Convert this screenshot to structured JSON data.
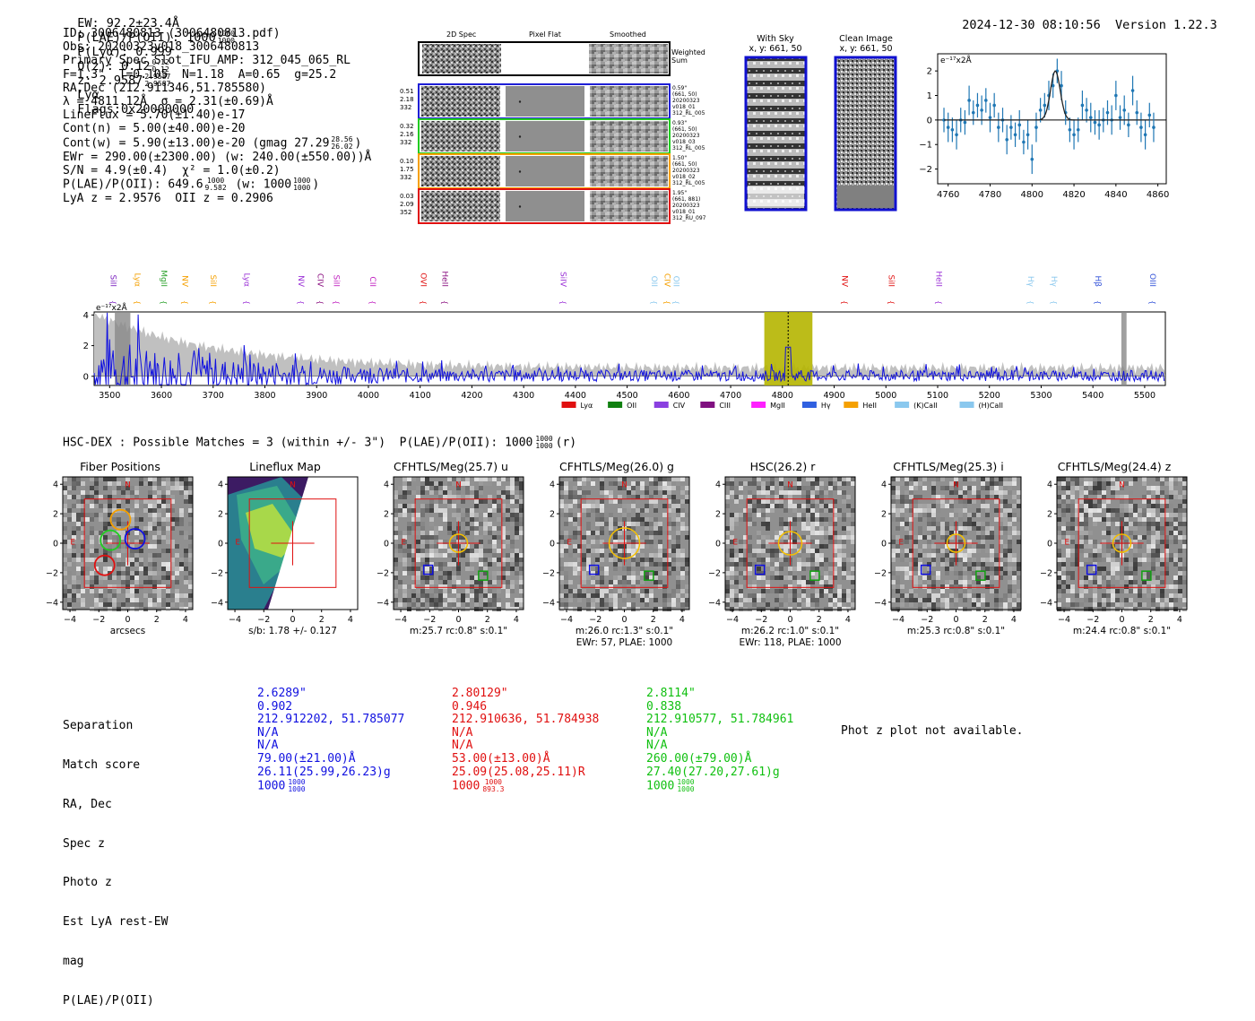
{
  "header": {
    "ew": "EW: 92.2±23.4Å",
    "plae_label": "P(LAE)/P(OII): 1000",
    "plae_hi": "1000",
    "plae_lo": "1000",
    "plya": "P(Lyα): 0.999",
    "qz_label": "Q(z): 0.12",
    "qz_hi": "0.12",
    "qz_lo": "0.12",
    "z_label": "z: 2.9587",
    "z_hi": "2.9587",
    "z_lo": "2.9587",
    "z_line": "Lyα",
    "flags": "Flags:0x20000000",
    "timestamp": "2024-12-30 08:10:56",
    "version": "Version 1.22.3"
  },
  "info": {
    "lines": [
      "ID: 3006480813 (3006480813.pdf)",
      "Obs: 20200323v018_3006480813",
      "Primary Spec_Slot_IFU_AMP: 312_045_065_RL",
      "F=1.3\"  T=0.105  N=1.18  A=0.65  g=25.2",
      "RA,Dec (212.911346,51.785580)",
      "λ = 4811.12Å  σ = 2.31(±0.69)Å",
      "LineFlux = 5.70(±1.40)e-17",
      "Cont(n) = 5.00(±40.00)e-20"
    ],
    "cont_w": "Cont(w) = 5.90(±13.00)e-20 (gmag 27.29",
    "cont_w_hi": "28.56",
    "cont_w_lo": "26.02",
    "cont_w_end": ")",
    "ewr": "EWr = 290.00(±2300.00) (w: 240.00(±550.00))Å",
    "sn": "S/N = 4.9(±0.4)  χ² = 1.0(±0.2)",
    "plae2": "P(LAE)/P(OII): 649.6",
    "plae2_hi": "1000",
    "plae2_lo": "9.582",
    "plae2_w": "(w: 1000",
    "plae2_w_hi": "1000",
    "plae2_w_lo": "1000",
    "plae2_end": ")",
    "zs": "LyA z = 2.9576  OII z = 0.2906"
  },
  "cutouts": {
    "col_headers": [
      "2D Spec",
      "Pixel Flat",
      "Smoothed"
    ],
    "weighted_sum": "Weighted Sum",
    "rows": [
      {
        "left": [
          "0.51",
          "2.18",
          "332"
        ],
        "right": [
          "0.59\"",
          "(661, 50)",
          "20200323",
          "v018_01",
          "312_RL_005"
        ],
        "color": "#1f1fd6"
      },
      {
        "left": [
          "0.32",
          "2.16",
          "332"
        ],
        "right": [
          "0.93\"",
          "(661, 50)",
          "20200323",
          "v018_03",
          "312_RL_005"
        ],
        "color": "#22cc22"
      },
      {
        "left": [
          "0.10",
          "1.75",
          "332"
        ],
        "right": [
          "1.50\"",
          "(661, 50)",
          "20200323",
          "v018_02",
          "312_RL_005"
        ],
        "color": "#f5a000"
      },
      {
        "left": [
          "0.03",
          "2.09",
          "352"
        ],
        "right": [
          "1.95\"",
          "(661, 881)",
          "20200323",
          "v018_01",
          "312_RU_097"
        ],
        "color": "#e01010"
      }
    ],
    "with_sky_title": "With Sky",
    "with_sky_coords": "x, y: 661, 50",
    "clean_title": "Clean Image",
    "clean_coords": "x, y: 661, 50"
  },
  "zoom_chart": {
    "type": "line",
    "ylabel": "e⁻¹⁷x2Å",
    "x_ticks": [
      "4760",
      "4780",
      "4800",
      "4820",
      "4840",
      "4860"
    ],
    "y_ticks": [
      "2",
      "1",
      "0",
      "−1",
      "−2"
    ],
    "xlim": [
      4755,
      4864
    ],
    "ylim": [
      -2.6,
      2.7
    ],
    "x": [
      4758,
      4760,
      4762,
      4764,
      4766,
      4768,
      4770,
      4772,
      4774,
      4776,
      4778,
      4780,
      4782,
      4784,
      4786,
      4788,
      4790,
      4792,
      4794,
      4796,
      4798,
      4800,
      4802,
      4804,
      4806,
      4808,
      4810,
      4812,
      4814,
      4816,
      4818,
      4820,
      4822,
      4824,
      4826,
      4828,
      4830,
      4832,
      4834,
      4836,
      4838,
      4840,
      4842,
      4844,
      4846,
      4848,
      4850,
      4852,
      4854,
      4856,
      4858
    ],
    "values": [
      0.0,
      -0.3,
      -0.4,
      -0.6,
      0.0,
      -0.1,
      0.8,
      0.3,
      0.6,
      0.4,
      0.8,
      0.1,
      0.6,
      -0.3,
      0.0,
      -0.8,
      -0.3,
      -0.6,
      -0.2,
      -0.9,
      -0.6,
      -1.6,
      -0.3,
      0.4,
      0.6,
      1.0,
      1.4,
      2.0,
      1.4,
      0.3,
      -0.4,
      -0.6,
      -0.4,
      0.6,
      0.4,
      0.1,
      -0.1,
      -0.2,
      0.0,
      0.3,
      0.0,
      1.0,
      0.1,
      0.4,
      -0.2,
      1.2,
      0.3,
      -0.3,
      -0.6,
      0.2,
      -0.3
    ],
    "errors": [
      0.5,
      0.6,
      0.5,
      0.6,
      0.5,
      0.5,
      0.6,
      0.5,
      0.5,
      0.6,
      0.5,
      0.6,
      0.5,
      0.6,
      0.5,
      0.6,
      0.5,
      0.5,
      0.6,
      0.5,
      0.6,
      0.6,
      0.6,
      0.5,
      0.5,
      0.6,
      0.5,
      0.5,
      0.6,
      0.5,
      0.5,
      0.6,
      0.5,
      0.6,
      0.5,
      0.6,
      0.5,
      0.6,
      0.5,
      0.5,
      0.6,
      0.6,
      0.5,
      0.6,
      0.5,
      0.6,
      0.5,
      0.6,
      0.6,
      0.5,
      0.6
    ],
    "fit_center": 4811.12,
    "fit_sigma": 2.31,
    "fit_amp": 2.0
  },
  "spectrum": {
    "type": "line",
    "ylabel": "e⁻¹⁷x2Å",
    "x_ticks": [
      "3500",
      "3600",
      "3700",
      "3800",
      "3900",
      "4000",
      "4100",
      "4200",
      "4300",
      "4400",
      "4500",
      "4600",
      "4700",
      "4800",
      "4900",
      "5000",
      "5100",
      "5200",
      "5300",
      "5400",
      "5500"
    ],
    "y_ticks": [
      "4",
      "2",
      "0"
    ],
    "xlim": [
      3470,
      5540
    ],
    "ylim": [
      -0.6,
      4.2
    ],
    "highlight_band": [
      4765,
      4858
    ],
    "line_marker": 4811.12,
    "lines": [
      {
        "label": "SiII",
        "wave": 3497,
        "color": "#7a1fbf"
      },
      {
        "label": "Lyα",
        "wave": 3544,
        "color": "#f5a000"
      },
      {
        "label": "MgII",
        "wave": 3595,
        "color": "#2aa02a"
      },
      {
        "label": "NV",
        "wave": 3635,
        "color": "#f5a000"
      },
      {
        "label": "SiII",
        "wave": 3690,
        "color": "#f5a000"
      },
      {
        "label": "Lyα",
        "wave": 3755,
        "color": "#9a2fd6"
      },
      {
        "label": "NV",
        "wave": 3860,
        "color": "#9a2fd6"
      },
      {
        "label": "CIV",
        "wave": 3897,
        "color": "#8a1080"
      },
      {
        "label": "SiII",
        "wave": 3928,
        "color": "#c020c0"
      },
      {
        "label": "CII",
        "wave": 3998,
        "color": "#c020c0"
      },
      {
        "label": "OVI",
        "wave": 4096,
        "color": "#e01010"
      },
      {
        "label": "HeII",
        "wave": 4138,
        "color": "#8a1080"
      },
      {
        "label": "SiIV",
        "wave": 4366,
        "color": "#9a2fd6"
      },
      {
        "label": "OII",
        "wave": 4542,
        "color": "#8ac8ee"
      },
      {
        "label": "CIV",
        "wave": 4567,
        "color": "#f5a000"
      },
      {
        "label": "OII",
        "wave": 4585,
        "color": "#8ac8ee"
      },
      {
        "label": "NV",
        "wave": 4910,
        "color": "#e01010"
      },
      {
        "label": "SiII",
        "wave": 5000,
        "color": "#e01010"
      },
      {
        "label": "HeII",
        "wave": 5092,
        "color": "#9a2fd6"
      },
      {
        "label": "Hγ",
        "wave": 5270,
        "color": "#8ac8ee"
      },
      {
        "label": "Hγ",
        "wave": 5315,
        "color": "#8ac8ee"
      },
      {
        "label": "Hβ",
        "wave": 5400,
        "color": "#3050d8"
      },
      {
        "label": "OIII",
        "wave": 5505,
        "color": "#3050d8"
      }
    ],
    "upper_lines": [
      {
        "label": "SiIV",
        "wave": 4097,
        "color": "#f5a000"
      },
      {
        "label": "OII",
        "wave": 4133,
        "color": "#3050d8"
      }
    ],
    "legend": [
      {
        "label": "Lyα",
        "color": "#e01010"
      },
      {
        "label": "OII",
        "color": "#108010"
      },
      {
        "label": "CIV",
        "color": "#8a40e0"
      },
      {
        "label": "CIII",
        "color": "#801080"
      },
      {
        "label": "MgII",
        "color": "#ff20ff"
      },
      {
        "label": "Hγ",
        "color": "#3060e0"
      },
      {
        "label": "HeII",
        "color": "#f5a000"
      },
      {
        "label": "(K)CaII",
        "color": "#8ac8ee"
      },
      {
        "label": "(H)CaII",
        "color": "#8ac8ee"
      }
    ]
  },
  "matches": {
    "header": "HSC-DEX : Possible Matches = 3 (within +/- 3\")  P(LAE)/P(OII): 1000",
    "header_hi": "1000",
    "header_lo": "1000",
    "header_end": "(r)",
    "panels": [
      {
        "title": "Fiber Positions",
        "xlabel": "arcsecs",
        "sub1": "",
        "sub2": ""
      },
      {
        "title": "Lineflux Map",
        "xlabel": "s/b: 1.78 +/- 0.127",
        "sub1": "",
        "sub2": ""
      },
      {
        "title": "CFHTLS/Meg(25.7) u",
        "xlabel": "m:25.7 rc:0.8\"  s:0.1\"",
        "sub1": "",
        "sub2": ""
      },
      {
        "title": "CFHTLS/Meg(26.0) g",
        "xlabel": "m:26.0 rc:1.3\"  s:0.1\"",
        "sub1": "EWr: 57, PLAE: 1000",
        "sub2": ""
      },
      {
        "title": "HSC(26.2) r",
        "xlabel": "m:26.2 rc:1.0\"  s:0.1\"",
        "sub1": "EWr: 118, PLAE: 1000",
        "sub2": ""
      },
      {
        "title": "CFHTLS/Meg(25.3) i",
        "xlabel": "m:25.3 rc:0.8\"  s:0.1\"",
        "sub1": "",
        "sub2": ""
      },
      {
        "title": "CFHTLS/Meg(24.4) z",
        "xlabel": "m:24.4 rc:0.8\"  s:0.1\"",
        "sub1": "",
        "sub2": ""
      }
    ],
    "axis_ticks": [
      "−4",
      "−2",
      "0",
      "2",
      "4"
    ],
    "compass_n": "N",
    "compass_e": "E"
  },
  "table": {
    "labels": [
      "Separation",
      "Match score",
      "RA, Dec",
      "Spec z",
      "Photo z",
      "Est LyA rest-EW",
      "mag",
      "P(LAE)/P(OII)"
    ],
    "columns": [
      {
        "color": "#1010e0",
        "values": [
          "2.6289\"",
          "0.902",
          "212.912202, 51.785077",
          "N/A",
          "N/A",
          "79.00(±21.00)Å",
          "26.11(25.99,26.23)g",
          "1000"
        ],
        "plae_hi": "1000",
        "plae_lo": "1000"
      },
      {
        "color": "#e01010",
        "values": [
          "2.80129\"",
          "0.946",
          "212.910636, 51.784938",
          "N/A",
          "N/A",
          "53.00(±13.00)Å",
          "25.09(25.08,25.11)R",
          "1000"
        ],
        "plae_hi": "1000",
        "plae_lo": "893.3"
      },
      {
        "color": "#10c010",
        "values": [
          "2.8114\"",
          "0.838",
          "212.910577, 51.784961",
          "N/A",
          "N/A",
          "260.00(±79.00)Å",
          "27.40(27.20,27.61)g",
          "1000"
        ],
        "plae_hi": "1000",
        "plae_lo": "1000"
      }
    ],
    "photz_note": "Phot z plot not available."
  }
}
